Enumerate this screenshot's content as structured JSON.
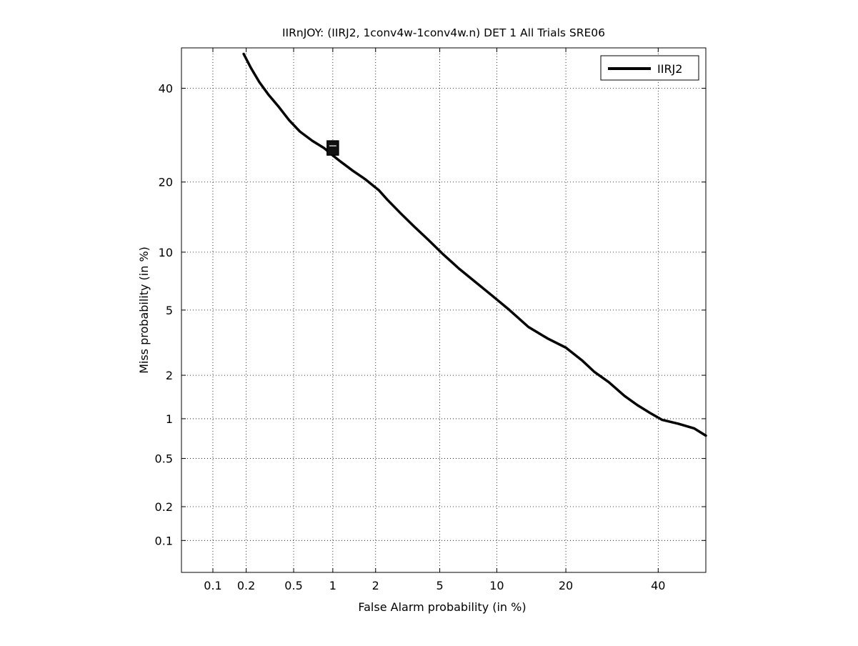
{
  "chart_data": {
    "type": "line",
    "title": "IIRnJOY: (IIRJ2, 1conv4w-1conv4w.n) DET 1 All Trials SRE06",
    "xlabel": "False Alarm probability (in %)",
    "ylabel": "Miss probability (in %)",
    "x_scale": "normal-deviate (probit)",
    "y_scale": "normal-deviate (probit)",
    "xlim": [
      0.05,
      52
    ],
    "ylim": [
      0.05,
      50
    ],
    "x_ticks": [
      0.1,
      0.2,
      0.5,
      1,
      2,
      5,
      10,
      20,
      40
    ],
    "y_ticks": [
      0.1,
      0.2,
      0.5,
      1,
      2,
      5,
      10,
      20,
      40
    ],
    "x_tick_labels": [
      "0.1",
      "0.2",
      "0.5",
      "1",
      "2",
      "5",
      "10",
      "20",
      "40"
    ],
    "y_tick_labels": [
      "0.1",
      "0.2",
      "0.5",
      "1",
      "2",
      "5",
      "10",
      "20",
      "40"
    ],
    "grid": true,
    "legend_position": "top-right",
    "series": [
      {
        "name": "IIRJ2",
        "color": "#000000",
        "x": [
          0.19,
          0.22,
          0.26,
          0.31,
          0.38,
          0.46,
          0.56,
          0.7,
          0.86,
          1.0,
          1.15,
          1.4,
          1.7,
          2.1,
          2.4,
          2.9,
          3.5,
          4.3,
          5.2,
          6.4,
          7.8,
          9.5,
          11.5,
          14,
          17,
          20,
          23,
          25.5,
          28.5,
          32,
          35,
          38,
          41,
          45,
          49,
          52
        ],
        "y": [
          48.5,
          45,
          41.5,
          38.5,
          35.5,
          32.5,
          30,
          28,
          26.5,
          25,
          23.7,
          22,
          20.5,
          18.6,
          17,
          15,
          13.2,
          11.4,
          9.8,
          8.3,
          7.1,
          6.0,
          5.0,
          4.0,
          3.4,
          3.0,
          2.5,
          2.1,
          1.8,
          1.45,
          1.25,
          1.1,
          0.98,
          0.92,
          0.85,
          0.75
        ]
      }
    ],
    "markers": [
      {
        "shape": "square",
        "x": 1.0,
        "y": 26.5
      }
    ]
  }
}
